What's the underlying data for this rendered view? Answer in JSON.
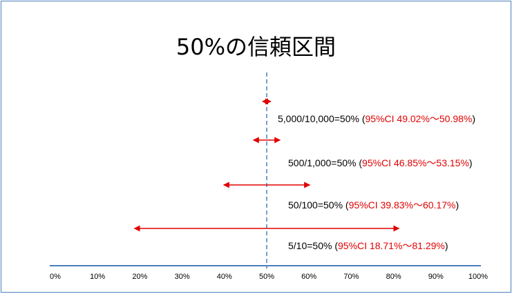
{
  "title": "50%の信頼区間",
  "chart_data": {
    "type": "diagram",
    "reference_value": 50,
    "axis_ticks": [
      "0%",
      "10%",
      "20%",
      "30%",
      "40%",
      "50%",
      "60%",
      "70%",
      "80%",
      "90%",
      "100%"
    ],
    "axis_ticks_values": [
      0,
      10,
      20,
      30,
      40,
      50,
      60,
      70,
      80,
      90,
      100
    ],
    "intervals": [
      {
        "label": "5,000/10,000=50% (",
        "ci_label": "95%CI 49.02%〜50.98%",
        "close": ")",
        "low": 49.02,
        "high": 50.98
      },
      {
        "label": "500/1,000=50% (",
        "ci_label": "95%CI 46.85%〜53.15%",
        "close": ")",
        "low": 46.85,
        "high": 53.15
      },
      {
        "label": "50/100=50% (",
        "ci_label": "95%CI 39.83%〜60.17%",
        "close": ")",
        "low": 39.83,
        "high": 60.17
      },
      {
        "label": "5/10=50% (",
        "ci_label": "95%CI 18.71%〜81.29%",
        "close": ")",
        "low": 18.71,
        "high": 81.29
      }
    ],
    "colors": {
      "arrow": "#e00000",
      "axis": "#4a7ebb",
      "reference_line": "#4a7ebb",
      "ci_text": "#e00000"
    }
  }
}
